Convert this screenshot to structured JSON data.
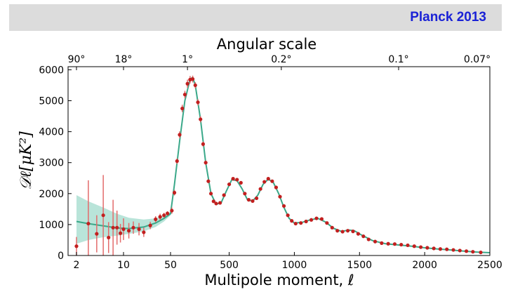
{
  "banner": {
    "title": "Planck 2013",
    "background": "#dcdcdc",
    "title_color": "#1a22d6"
  },
  "colors": {
    "band": "#a8ddd0",
    "theory": "#3aa889",
    "points": "#c21f1f",
    "errorbars": "#e36b6b"
  },
  "chart_data": {
    "type": "scatter",
    "title": "Angular scale",
    "xlabel": "Multipole moment, ℓ",
    "ylabel": "𝒟ℓ[μK²]",
    "x_scale": "log for ℓ < 50, linear for ℓ ≥ 50",
    "xlim": [
      1.5,
      2500
    ],
    "ylim": [
      0,
      6100
    ],
    "x_ticks": [
      2,
      10,
      50,
      500,
      1000,
      1500,
      2000,
      2500
    ],
    "y_ticks": [
      0,
      1000,
      2000,
      3000,
      4000,
      5000,
      6000
    ],
    "top_axis": {
      "label": "Angular scale",
      "ticks": [
        {
          "label": "90°",
          "ell": 2
        },
        {
          "label": "18°",
          "ell": 10
        },
        {
          "label": "1°",
          "ell": 180
        },
        {
          "label": "0.2°",
          "ell": 900
        },
        {
          "label": "0.1°",
          "ell": 1800
        },
        {
          "label": "0.07°",
          "ell": 2570
        }
      ]
    },
    "grid": false,
    "series": [
      {
        "type": "line",
        "points": [
          [
            2,
            1100
          ],
          [
            3,
            1030
          ],
          [
            5,
            960
          ],
          [
            8,
            890
          ],
          [
            12,
            870
          ],
          [
            20,
            920
          ],
          [
            30,
            1050
          ],
          [
            40,
            1200
          ],
          [
            50,
            1350
          ],
          [
            80,
            2300
          ],
          [
            120,
            3700
          ],
          [
            160,
            5000
          ],
          [
            200,
            5700
          ],
          [
            220,
            5750
          ],
          [
            240,
            5500
          ],
          [
            280,
            4400
          ],
          [
            320,
            3000
          ],
          [
            360,
            2000
          ],
          [
            400,
            1650
          ],
          [
            440,
            1720
          ],
          [
            480,
            2100
          ],
          [
            520,
            2450
          ],
          [
            560,
            2420
          ],
          [
            600,
            2150
          ],
          [
            640,
            1800
          ],
          [
            680,
            1760
          ],
          [
            720,
            1950
          ],
          [
            760,
            2300
          ],
          [
            800,
            2470
          ],
          [
            840,
            2350
          ],
          [
            880,
            2000
          ],
          [
            920,
            1550
          ],
          [
            960,
            1200
          ],
          [
            1000,
            1050
          ],
          [
            1060,
            1070
          ],
          [
            1120,
            1150
          ],
          [
            1180,
            1200
          ],
          [
            1240,
            1080
          ],
          [
            1300,
            880
          ],
          [
            1360,
            780
          ],
          [
            1420,
            820
          ],
          [
            1460,
            800
          ],
          [
            1520,
            650
          ],
          [
            1600,
            480
          ],
          [
            1700,
            380
          ],
          [
            1800,
            340
          ],
          [
            1900,
            300
          ],
          [
            2000,
            250
          ],
          [
            2100,
            210
          ],
          [
            2200,
            180
          ],
          [
            2300,
            140
          ],
          [
            2400,
            110
          ],
          [
            2500,
            90
          ]
        ]
      },
      {
        "type": "band",
        "upper": [
          [
            2,
            1950
          ],
          [
            3,
            1750
          ],
          [
            5,
            1550
          ],
          [
            8,
            1350
          ],
          [
            12,
            1220
          ],
          [
            20,
            1160
          ],
          [
            30,
            1200
          ],
          [
            40,
            1300
          ],
          [
            50,
            1400
          ]
        ],
        "lower": [
          [
            2,
            380
          ],
          [
            3,
            500
          ],
          [
            5,
            590
          ],
          [
            8,
            640
          ],
          [
            12,
            700
          ],
          [
            20,
            780
          ],
          [
            30,
            920
          ],
          [
            40,
            1100
          ],
          [
            50,
            1300
          ]
        ]
      },
      {
        "type": "scatter",
        "points": [
          {
            "x": 2,
            "y": 300,
            "err": 300
          },
          {
            "x": 3,
            "y": 1030,
            "err": 1400
          },
          {
            "x": 4,
            "y": 700,
            "err": 600
          },
          {
            "x": 5,
            "y": 1300,
            "err": 1300
          },
          {
            "x": 6,
            "y": 580,
            "err": 500
          },
          {
            "x": 7,
            "y": 900,
            "err": 900
          },
          {
            "x": 8,
            "y": 900,
            "err": 550
          },
          {
            "x": 9,
            "y": 720,
            "err": 300
          },
          {
            "x": 10,
            "y": 850,
            "err": 350
          },
          {
            "x": 12,
            "y": 800,
            "err": 250
          },
          {
            "x": 14,
            "y": 900,
            "err": 200
          },
          {
            "x": 17,
            "y": 850,
            "err": 200
          },
          {
            "x": 20,
            "y": 750,
            "err": 150
          },
          {
            "x": 25,
            "y": 970,
            "err": 120
          },
          {
            "x": 30,
            "y": 1170,
            "err": 100
          },
          {
            "x": 35,
            "y": 1250,
            "err": 100
          },
          {
            "x": 40,
            "y": 1300,
            "err": 80
          },
          {
            "x": 45,
            "y": 1360,
            "err": 70
          },
          {
            "x": 60,
            "y": 1450,
            "err": 100
          },
          {
            "x": 80,
            "y": 2030,
            "err": 90
          },
          {
            "x": 100,
            "y": 3050,
            "err": 90
          },
          {
            "x": 120,
            "y": 3900,
            "err": 110
          },
          {
            "x": 140,
            "y": 4750,
            "err": 120
          },
          {
            "x": 160,
            "y": 5200,
            "err": 120
          },
          {
            "x": 180,
            "y": 5550,
            "err": 130
          },
          {
            "x": 200,
            "y": 5680,
            "err": 120
          },
          {
            "x": 220,
            "y": 5700,
            "err": 110
          },
          {
            "x": 240,
            "y": 5500,
            "err": 100
          },
          {
            "x": 260,
            "y": 4950,
            "err": 100
          },
          {
            "x": 280,
            "y": 4400,
            "err": 100
          },
          {
            "x": 300,
            "y": 3600,
            "err": 80
          },
          {
            "x": 320,
            "y": 3000,
            "err": 70
          },
          {
            "x": 340,
            "y": 2400,
            "err": 60
          },
          {
            "x": 360,
            "y": 2000,
            "err": 60
          },
          {
            "x": 380,
            "y": 1750,
            "err": 50
          },
          {
            "x": 400,
            "y": 1680,
            "err": 50
          },
          {
            "x": 430,
            "y": 1700,
            "err": 40
          },
          {
            "x": 460,
            "y": 1950,
            "err": 40
          },
          {
            "x": 500,
            "y": 2300,
            "err": 40
          },
          {
            "x": 530,
            "y": 2480,
            "err": 40
          },
          {
            "x": 560,
            "y": 2450,
            "err": 40
          },
          {
            "x": 590,
            "y": 2350,
            "err": 40
          },
          {
            "x": 620,
            "y": 2000,
            "err": 40
          },
          {
            "x": 650,
            "y": 1800,
            "err": 40
          },
          {
            "x": 680,
            "y": 1760,
            "err": 40
          },
          {
            "x": 710,
            "y": 1850,
            "err": 40
          },
          {
            "x": 740,
            "y": 2150,
            "err": 40
          },
          {
            "x": 770,
            "y": 2380,
            "err": 40
          },
          {
            "x": 800,
            "y": 2480,
            "err": 40
          },
          {
            "x": 830,
            "y": 2400,
            "err": 40
          },
          {
            "x": 860,
            "y": 2200,
            "err": 40
          },
          {
            "x": 890,
            "y": 1900,
            "err": 40
          },
          {
            "x": 920,
            "y": 1600,
            "err": 40
          },
          {
            "x": 950,
            "y": 1300,
            "err": 40
          },
          {
            "x": 980,
            "y": 1120,
            "err": 40
          },
          {
            "x": 1010,
            "y": 1030,
            "err": 40
          },
          {
            "x": 1050,
            "y": 1050,
            "err": 40
          },
          {
            "x": 1090,
            "y": 1100,
            "err": 40
          },
          {
            "x": 1130,
            "y": 1150,
            "err": 40
          },
          {
            "x": 1170,
            "y": 1200,
            "err": 40
          },
          {
            "x": 1210,
            "y": 1180,
            "err": 40
          },
          {
            "x": 1250,
            "y": 1050,
            "err": 40
          },
          {
            "x": 1290,
            "y": 900,
            "err": 40
          },
          {
            "x": 1330,
            "y": 800,
            "err": 40
          },
          {
            "x": 1370,
            "y": 770,
            "err": 40
          },
          {
            "x": 1410,
            "y": 800,
            "err": 40
          },
          {
            "x": 1450,
            "y": 780,
            "err": 40
          },
          {
            "x": 1490,
            "y": 700,
            "err": 40
          },
          {
            "x": 1530,
            "y": 620,
            "err": 40
          },
          {
            "x": 1570,
            "y": 520,
            "err": 40
          },
          {
            "x": 1620,
            "y": 450,
            "err": 40
          },
          {
            "x": 1670,
            "y": 400,
            "err": 40
          },
          {
            "x": 1720,
            "y": 380,
            "err": 40
          },
          {
            "x": 1770,
            "y": 370,
            "err": 40
          },
          {
            "x": 1820,
            "y": 350,
            "err": 40
          },
          {
            "x": 1870,
            "y": 330,
            "err": 40
          },
          {
            "x": 1920,
            "y": 300,
            "err": 40
          },
          {
            "x": 1970,
            "y": 270,
            "err": 40
          },
          {
            "x": 2020,
            "y": 250,
            "err": 40
          },
          {
            "x": 2070,
            "y": 230,
            "err": 40
          },
          {
            "x": 2120,
            "y": 210,
            "err": 40
          },
          {
            "x": 2170,
            "y": 200,
            "err": 40
          },
          {
            "x": 2220,
            "y": 180,
            "err": 40
          },
          {
            "x": 2270,
            "y": 160,
            "err": 40
          },
          {
            "x": 2320,
            "y": 140,
            "err": 40
          },
          {
            "x": 2370,
            "y": 120,
            "err": 40
          },
          {
            "x": 2430,
            "y": 100,
            "err": 40
          }
        ]
      }
    ]
  }
}
